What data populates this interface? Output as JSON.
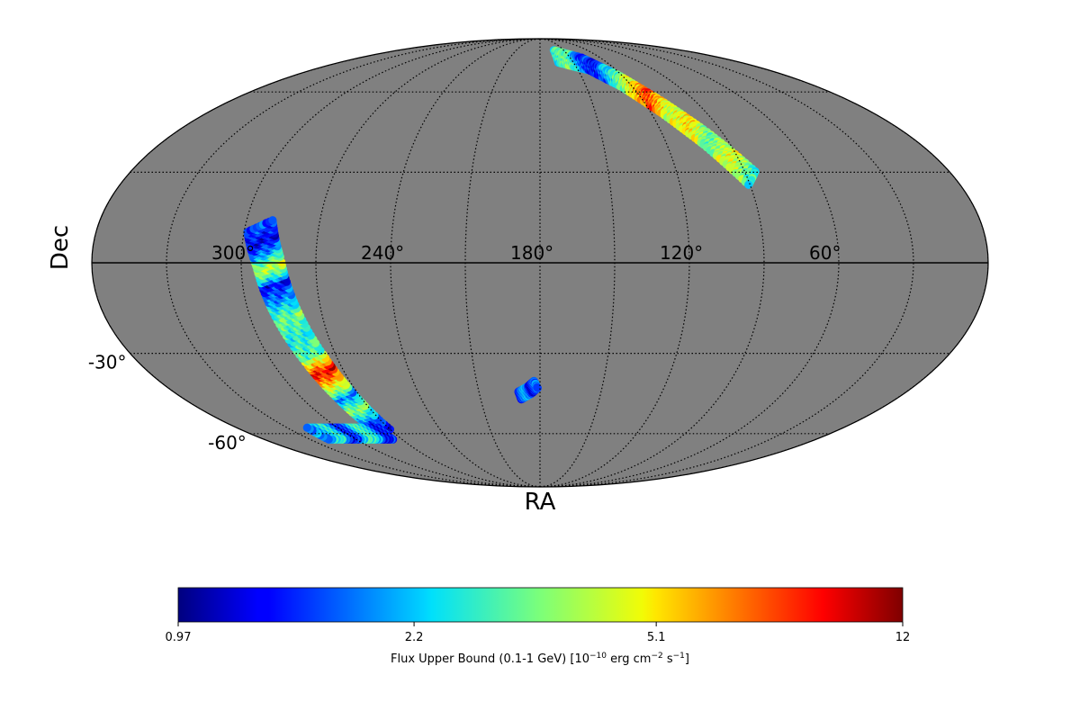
{
  "chart_data": {
    "type": "heatmap",
    "projection": "mollweide",
    "background_color": "#808080",
    "grid": true,
    "xlabel": "RA",
    "ylabel": "Dec",
    "ra_ticks": [
      {
        "ra": 300,
        "label": "300°"
      },
      {
        "ra": 240,
        "label": "240°"
      },
      {
        "ra": 180,
        "label": "180°"
      },
      {
        "ra": 120,
        "label": "120°"
      },
      {
        "ra": 60,
        "label": "60°"
      }
    ],
    "dec_ticks": [
      {
        "dec": -30,
        "label": "-30°"
      },
      {
        "dec": -60,
        "label": "-60°"
      }
    ],
    "colormap": "jet",
    "colorbar": {
      "label_prefix": "Flux Upper Bound (0.1-1 GeV) [10",
      "label_exp1": "−10",
      "label_mid": " erg cm",
      "label_exp2": "−2",
      "label_mid2": " s",
      "label_exp3": "−1",
      "label_suffix": "]",
      "ticks": [
        {
          "value": 0.97,
          "label": "0.97"
        },
        {
          "value": 2.2,
          "label": "2.2"
        },
        {
          "value": 5.1,
          "label": "5.1"
        },
        {
          "value": 12,
          "label": "12"
        }
      ],
      "range": [
        0.97,
        12
      ],
      "scale": "log"
    },
    "regions": [
      {
        "name": "",
        "centerline": [
          [
            275,
            -59
          ],
          [
            277,
            -46
          ],
          [
            280,
            -33
          ],
          [
            285,
            -15
          ],
          [
            289,
            0
          ],
          [
            294,
            12
          ]
        ],
        "half_width_deg": 5,
        "flux": [
          1.4,
          1.6,
          3.5,
          1.8,
          4.8,
          9.0,
          3.0,
          2.6,
          3.2,
          1.9,
          1.3,
          4.2,
          2.0,
          1.2,
          1.6
        ]
      },
      {
        "name": "",
        "centerline": [
          [
            276,
            -60
          ],
          [
            286,
            -60
          ],
          [
            296,
            -60
          ],
          [
            306,
            -60
          ],
          [
            318,
            -60
          ]
        ],
        "half_width_deg": 2.5,
        "flux": [
          1.5,
          1.2,
          2.4,
          3.0,
          1.6,
          1.3,
          2.8,
          1.9
        ]
      },
      {
        "name": "",
        "centerline": [
          [
            163,
            77
          ],
          [
            140,
            73
          ],
          [
            125,
            65
          ],
          [
            112,
            54
          ],
          [
            100,
            42
          ],
          [
            88,
            28
          ]
        ],
        "half_width_deg": 3.5,
        "flux": [
          2.6,
          3.4,
          1.6,
          1.3,
          2.4,
          4.4,
          7.8,
          4.0,
          5.2,
          3.0,
          4.6,
          2.7
        ]
      },
      {
        "name": "",
        "centerline": [
          [
            -170,
            -45
          ],
          [
            -175,
            -43
          ],
          [
            -178,
            -41
          ]
        ],
        "half_width_deg": 1.5,
        "flux": [
          1.3,
          2.2,
          1.1,
          1.8
        ]
      }
    ]
  }
}
